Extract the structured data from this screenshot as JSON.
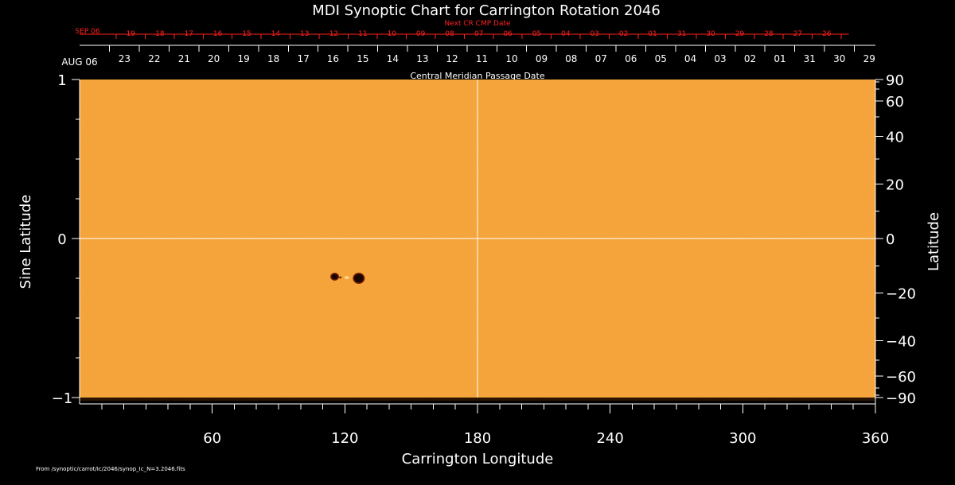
{
  "colors": {
    "background": "#000000",
    "text": "#ffffff",
    "red": "#ff2020",
    "map_base": "#f5a43b",
    "map_light": "#ffd287",
    "map_dark": "#dd7a18",
    "spot": "#1a0500",
    "spot_edge": "#7a2400",
    "grid": "#ffffff"
  },
  "chart_data": {
    "type": "heatmap",
    "title": "MDI Synoptic Chart for Carrington Rotation 2046",
    "xlabel": "Carrington Longitude",
    "ylabel_left": "Sine Latitude",
    "ylabel_right": "Latitude",
    "xlim": [
      0,
      360
    ],
    "ylim": [
      -1,
      1
    ],
    "x_ticks": [
      60,
      120,
      180,
      240,
      300,
      360
    ],
    "x_ticks_minor_step": 10,
    "y_ticks_left": [
      1,
      0,
      -1
    ],
    "y_ticks_left_minor_step": 0.25,
    "y_ticks_right_latitude": [
      90,
      60,
      40,
      20,
      0,
      -20,
      -40,
      -60,
      -90
    ],
    "y_ticks_right_labels": [
      "90",
      "60",
      "40",
      "20",
      "0",
      "−20",
      "−40",
      "−60",
      "−90"
    ],
    "y_ticks_right_minor_latitude": [
      80,
      70,
      50,
      30,
      10,
      -10,
      -30,
      -50,
      -70,
      -80
    ],
    "grid_lines": {
      "longitude": 180,
      "sine_latitude": 0
    },
    "top_axis": {
      "label": "Central Meridian Passage Date",
      "month_label": "AUG 06",
      "dates": [
        "23",
        "22",
        "21",
        "20",
        "19",
        "18",
        "17",
        "16",
        "15",
        "14",
        "13",
        "12",
        "11",
        "10",
        "09",
        "08",
        "07",
        "06",
        "05",
        "04",
        "03",
        "02",
        "01",
        "31",
        "30",
        "29"
      ],
      "date_positions": [
        20.3,
        33.8,
        47.3,
        60.7,
        74.2,
        87.7,
        101.2,
        114.6,
        128.1,
        141.6,
        155.1,
        168.5,
        182.0,
        195.5,
        209.0,
        222.4,
        235.9,
        249.4,
        262.9,
        276.3,
        289.8,
        303.3,
        316.8,
        330.2,
        343.7,
        357.2
      ]
    },
    "top_axis_red": {
      "label": "Next CR CMP Date",
      "month_label": "SEP 06",
      "dates": [
        "19",
        "18",
        "17",
        "16",
        "15",
        "14",
        "13",
        "12",
        "11",
        "10",
        "09",
        "08",
        "07",
        "06",
        "05",
        "04",
        "03",
        "02",
        "01",
        "31",
        "30",
        "29",
        "28",
        "27",
        "26"
      ],
      "date_positions": [
        23.1,
        36.3,
        49.4,
        62.5,
        75.6,
        88.7,
        101.8,
        115.0,
        128.1,
        141.2,
        154.3,
        167.4,
        180.6,
        193.7,
        206.8,
        219.9,
        233.0,
        246.1,
        259.2,
        272.4,
        285.5,
        298.6,
        311.7,
        324.8,
        338.0
      ],
      "minor_ticks_extend_to": 348
    },
    "features": [
      {
        "name": "sunspot-leading",
        "lon": 126.3,
        "sinlat": -0.25
      },
      {
        "name": "sunspot-trailing",
        "lon": 115.4,
        "sinlat": -0.24
      }
    ],
    "source_note": "From /synoptic/carrot/Ic/2046/synop_Ic_N=3.2046.fits"
  }
}
